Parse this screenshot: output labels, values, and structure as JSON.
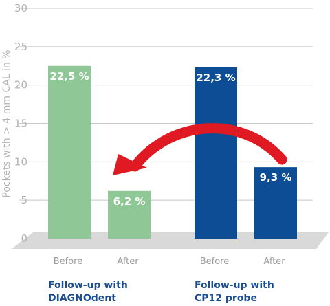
{
  "chart_data": {
    "type": "bar",
    "ylabel": "Pockets with > 4 mm CAL in %",
    "ylim": [
      0,
      30
    ],
    "yticks": [
      0,
      5,
      10,
      15,
      20,
      25,
      30
    ],
    "grid": true,
    "bars": [
      {
        "category": "Before",
        "group": "DIAGNOdent",
        "value": 22.5,
        "label": "22,5 %",
        "color": "#8fc796"
      },
      {
        "category": "After",
        "group": "DIAGNOdent",
        "value": 6.2,
        "label": "6,2 %",
        "color": "#8fc796"
      },
      {
        "category": "Before",
        "group": "CP12",
        "value": 22.3,
        "label": "22,3 %",
        "color": "#0d4d96"
      },
      {
        "category": "After",
        "group": "CP12",
        "value": 9.3,
        "label": "9,3 %",
        "color": "#0d4d96"
      }
    ],
    "groups": [
      {
        "line1": "Follow-up with",
        "line2": "DIAGNOdent"
      },
      {
        "line1": "Follow-up with",
        "line2": "CP12 probe"
      }
    ],
    "colors": {
      "arrow": "#e01a22",
      "floor": "#d9d9d9",
      "grid": "#c8c8c8"
    }
  }
}
